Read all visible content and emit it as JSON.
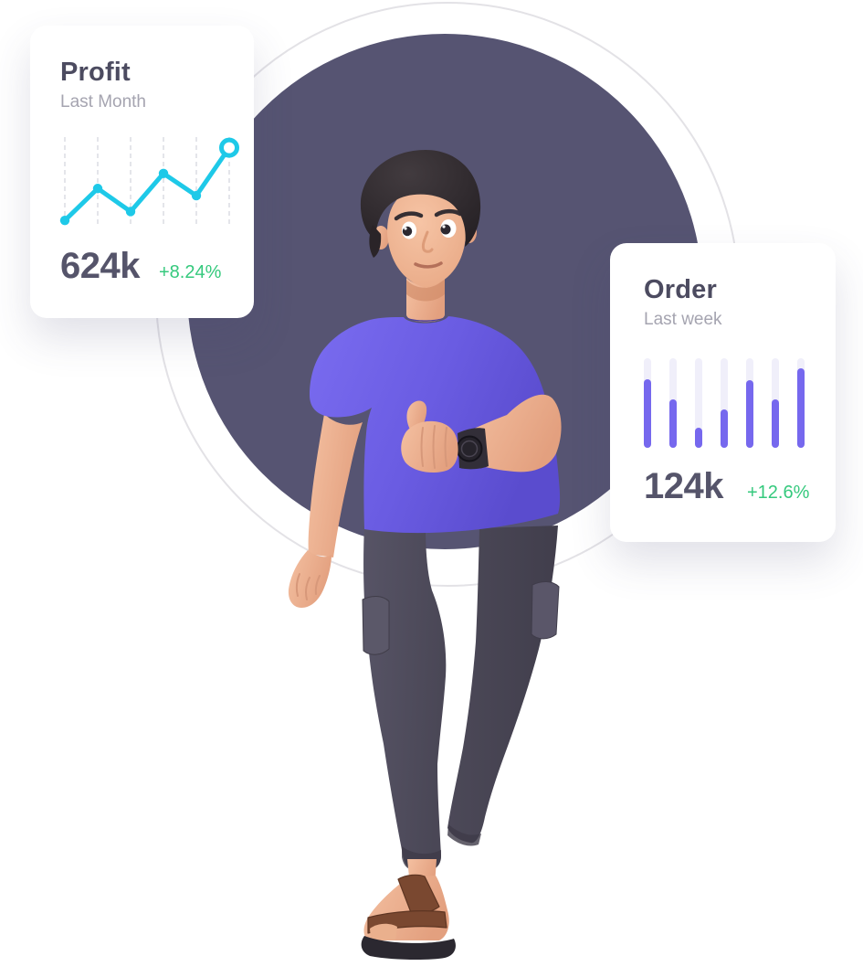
{
  "page": {
    "background": "#ffffff"
  },
  "illustration": {
    "alt": "3D man with dark hair wearing a purple t-shirt, dark jogger pants and brown sandals, giving a thumbs-up with a watch on his wrist, standing in front of a large dark circle with a thin light outline ring",
    "background_circle_color": "#565472",
    "ring_color": "#e3e2e6"
  },
  "profit_card": {
    "title": "Profit",
    "subtitle": "Last Month",
    "value": "624k",
    "change": "+8.24%",
    "chart_data": {
      "type": "line",
      "points_pct": [
        6,
        42,
        16,
        59,
        34,
        88
      ],
      "x_labels": [],
      "gridlines": 6,
      "grid_style": "dashed-vertical",
      "line_color": "#1ec9e8",
      "grid_color": "#d9dae2",
      "end_marker": "open-ring"
    }
  },
  "order_card": {
    "title": "Order",
    "subtitle": "Last week",
    "value": "124k",
    "change": "+12.6%",
    "chart_data": {
      "type": "bar",
      "values_pct": [
        77,
        54,
        22,
        43,
        76,
        54,
        89
      ],
      "x_labels": [],
      "bar_color": "#7668ee",
      "track_color": "#f0effa"
    }
  },
  "colors": {
    "accent_purple": "#7668ee",
    "accent_cyan": "#1ec9e8",
    "positive_green": "#35c97d",
    "heading": "#4c4b60",
    "muted": "#a5a4b0",
    "value_text": "#55546a",
    "circle_fill": "#565472",
    "ring_stroke": "#e3e2e6",
    "bar_track": "#f0effa",
    "gridline": "#d9dae2",
    "card_bg": "#ffffff"
  }
}
